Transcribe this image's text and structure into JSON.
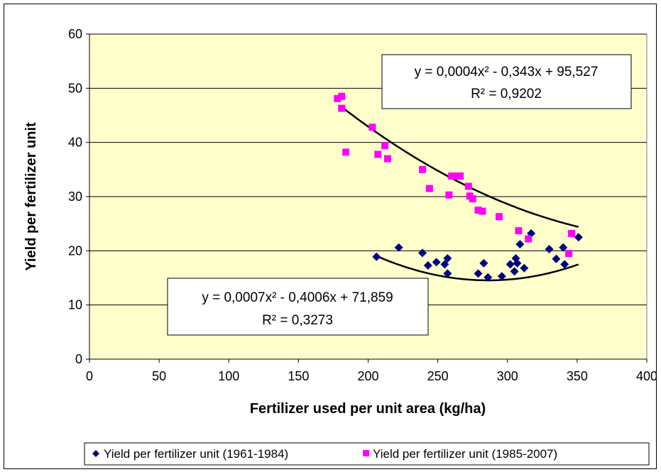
{
  "chart_data": {
    "type": "scatter",
    "title": "",
    "xlabel": "Fertilizer used per unit area (kg/ha)",
    "ylabel": "Yield per fertilizer unit",
    "xlim": [
      0,
      400
    ],
    "ylim": [
      0,
      60
    ],
    "xticks": [
      "0",
      "50",
      "100",
      "150",
      "200",
      "250",
      "300",
      "350",
      "400"
    ],
    "yticks": [
      "0",
      "10",
      "20",
      "30",
      "40",
      "50",
      "60"
    ],
    "grid": "horizontal major gridlines",
    "legend_position": "bottom",
    "plot_background": "#FFFFCC",
    "series": [
      {
        "name": "Yield per fertilizer unit (1961-1984)",
        "color": "#000080",
        "marker": "diamond",
        "points": [
          [
            206,
            18.9
          ],
          [
            222,
            20.6
          ],
          [
            239,
            19.6
          ],
          [
            243,
            17.3
          ],
          [
            249,
            17.9
          ],
          [
            255,
            17.5
          ],
          [
            257,
            18.6
          ],
          [
            257,
            15.8
          ],
          [
            279,
            15.8
          ],
          [
            283,
            17.7
          ],
          [
            286,
            15.1
          ],
          [
            296,
            15.3
          ],
          [
            302,
            17.5
          ],
          [
            305,
            16.2
          ],
          [
            306,
            18.6
          ],
          [
            307,
            17.7
          ],
          [
            309,
            21.2
          ],
          [
            312,
            16.8
          ],
          [
            317,
            23.2
          ],
          [
            330,
            20.3
          ],
          [
            335,
            18.5
          ],
          [
            340,
            20.6
          ],
          [
            341,
            17.5
          ],
          [
            351,
            22.5
          ]
        ],
        "trendline": {
          "type": "polynomial",
          "order": 2,
          "coefficients": [
            0.0007,
            -0.4006,
            71.859
          ],
          "x_range": [
            206,
            351
          ],
          "equation_text": "y = 0,0007x² - 0,4006x + 71,859",
          "r2_text": "R² = 0,3273"
        }
      },
      {
        "name": "Yield per fertilizer unit (1985-2007)",
        "color": "#FF00FF",
        "marker": "square",
        "points": [
          [
            178,
            48.1
          ],
          [
            181,
            48.5
          ],
          [
            181,
            46.3
          ],
          [
            184,
            38.2
          ],
          [
            203,
            42.8
          ],
          [
            207,
            37.8
          ],
          [
            212,
            39.4
          ],
          [
            214,
            37.0
          ],
          [
            239,
            35.0
          ],
          [
            244,
            31.5
          ],
          [
            258,
            30.3
          ],
          [
            260,
            33.8
          ],
          [
            262,
            33.8
          ],
          [
            266,
            33.8
          ],
          [
            272,
            31.9
          ],
          [
            273,
            30.1
          ],
          [
            275,
            29.6
          ],
          [
            279,
            27.5
          ],
          [
            282,
            27.3
          ],
          [
            294,
            26.3
          ],
          [
            308,
            23.7
          ],
          [
            315,
            22.2
          ],
          [
            344,
            19.5
          ],
          [
            346,
            23.2
          ]
        ],
        "trendline": {
          "type": "polynomial",
          "order": 2,
          "coefficients": [
            0.0004,
            -0.343,
            95.527
          ],
          "x_range": [
            180,
            351
          ],
          "equation_text": "y = 0,0004x² - 0,343x + 95,527",
          "r2_text": "R² = 0,9202"
        }
      }
    ]
  }
}
